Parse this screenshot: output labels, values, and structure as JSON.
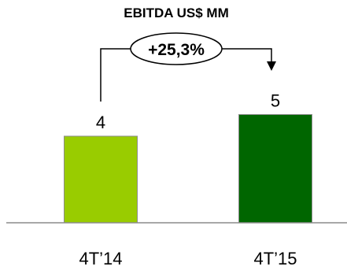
{
  "chart_data": {
    "type": "bar",
    "title": "EBITDA US$ MM",
    "categories": [
      "4T’14",
      "4T’15"
    ],
    "values": [
      4,
      5
    ],
    "value_labels": [
      "4",
      "5"
    ],
    "colors": [
      "#99cc00",
      "#006600"
    ],
    "annotation": {
      "text": "+25,3%",
      "from_category": "4T’14",
      "to_category": "4T’15"
    },
    "ylim": [
      0,
      6
    ],
    "grid": false,
    "legend": "none"
  }
}
